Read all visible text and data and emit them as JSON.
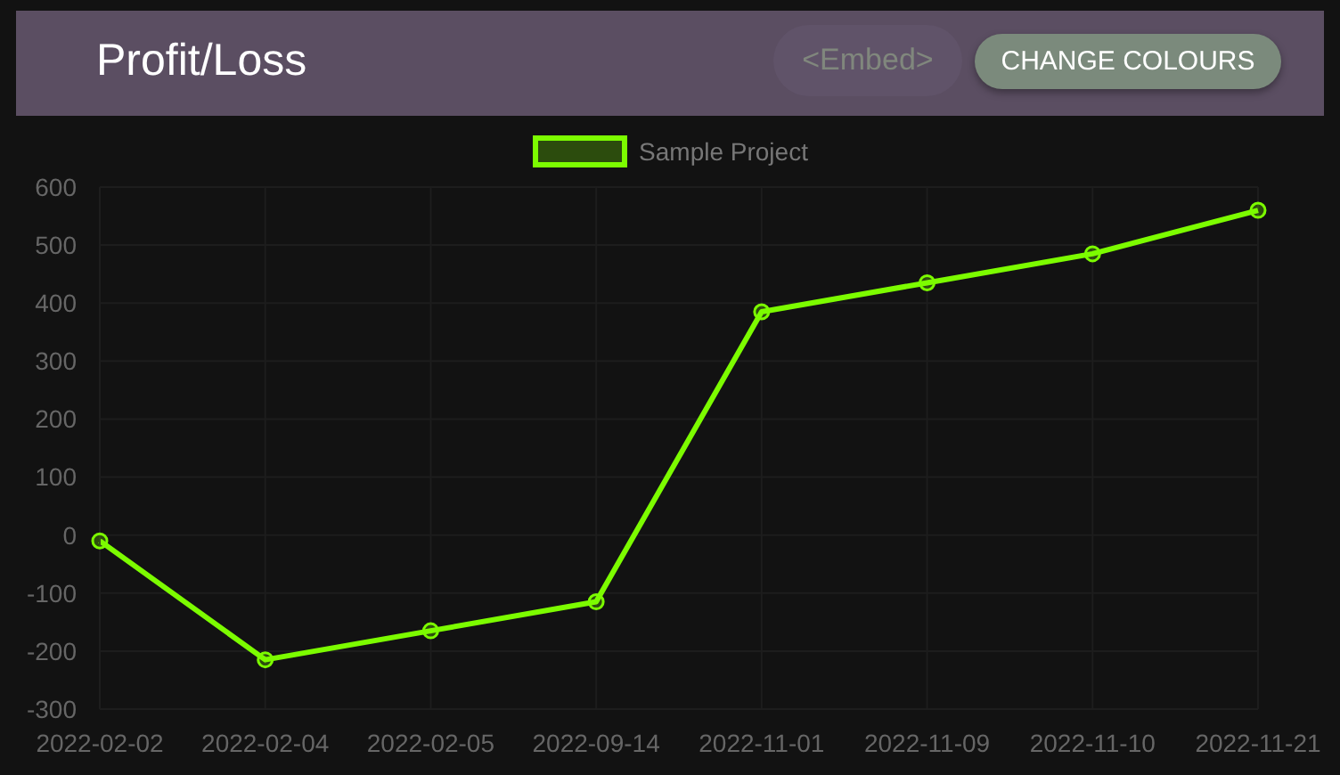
{
  "chart_data": {
    "type": "line",
    "title": "Profit/Loss",
    "annotations": [
      "<Embed>",
      "CHANGE COLOURS"
    ],
    "categories": [
      "2022-02-02",
      "2022-02-04",
      "2022-02-05",
      "2022-09-14",
      "2022-11-01",
      "2022-11-09",
      "2022-11-10",
      "2022-11-21"
    ],
    "series": [
      {
        "name": "Sample Project",
        "color": "#7cfc00",
        "values": [
          -10,
          -215,
          -165,
          -115,
          385,
          435,
          485,
          560
        ]
      }
    ],
    "ylim": [
      -300,
      600
    ],
    "yticks": [
      -300,
      -200,
      -100,
      0,
      100,
      200,
      300,
      400,
      500,
      600
    ],
    "grid": true,
    "legend": "top",
    "marker": "circle",
    "line_style": "solid"
  }
}
